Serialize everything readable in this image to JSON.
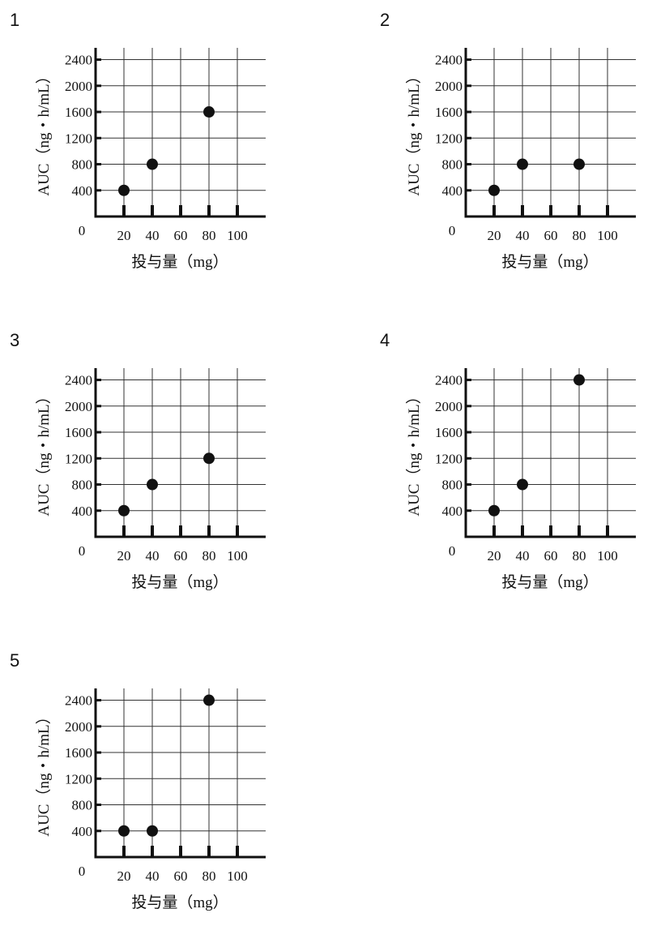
{
  "chart_data": [
    {
      "panel": "1",
      "type": "scatter",
      "xlabel": "投与量（mg）",
      "ylabel": "AUC（ng・h/mL）",
      "x": [
        20,
        40,
        80
      ],
      "y": [
        400,
        800,
        1600
      ],
      "x_ticks": [
        "20",
        "40",
        "60",
        "80",
        "100"
      ],
      "y_ticks": [
        "400",
        "800",
        "1200",
        "1600",
        "2000",
        "2400"
      ],
      "origin_label": "0",
      "xlim": [
        0,
        110
      ],
      "ylim": [
        0,
        2400
      ],
      "grid": true
    },
    {
      "panel": "2",
      "type": "scatter",
      "xlabel": "投与量（mg）",
      "ylabel": "AUC（ng・h/mL）",
      "x": [
        20,
        40,
        80
      ],
      "y": [
        400,
        800,
        800
      ],
      "x_ticks": [
        "20",
        "40",
        "60",
        "80",
        "100"
      ],
      "y_ticks": [
        "400",
        "800",
        "1200",
        "1600",
        "2000",
        "2400"
      ],
      "origin_label": "0",
      "xlim": [
        0,
        110
      ],
      "ylim": [
        0,
        2400
      ],
      "grid": true
    },
    {
      "panel": "3",
      "type": "scatter",
      "xlabel": "投与量（mg）",
      "ylabel": "AUC（ng・h/mL）",
      "x": [
        20,
        40,
        80
      ],
      "y": [
        400,
        800,
        1200
      ],
      "x_ticks": [
        "20",
        "40",
        "60",
        "80",
        "100"
      ],
      "y_ticks": [
        "400",
        "800",
        "1200",
        "1600",
        "2000",
        "2400"
      ],
      "origin_label": "0",
      "xlim": [
        0,
        110
      ],
      "ylim": [
        0,
        2400
      ],
      "grid": true
    },
    {
      "panel": "4",
      "type": "scatter",
      "xlabel": "投与量（mg）",
      "ylabel": "AUC（ng・h/mL）",
      "x": [
        20,
        40,
        80
      ],
      "y": [
        400,
        800,
        2400
      ],
      "x_ticks": [
        "20",
        "40",
        "60",
        "80",
        "100"
      ],
      "y_ticks": [
        "400",
        "800",
        "1200",
        "1600",
        "2000",
        "2400"
      ],
      "origin_label": "0",
      "xlim": [
        0,
        110
      ],
      "ylim": [
        0,
        2400
      ],
      "grid": true
    },
    {
      "panel": "5",
      "type": "scatter",
      "xlabel": "投与量（mg）",
      "ylabel": "AUC（ng・h/mL）",
      "x": [
        20,
        40,
        80
      ],
      "y": [
        400,
        400,
        2400
      ],
      "x_ticks": [
        "20",
        "40",
        "60",
        "80",
        "100"
      ],
      "y_ticks": [
        "400",
        "800",
        "1200",
        "1600",
        "2000",
        "2400"
      ],
      "origin_label": "0",
      "xlim": [
        0,
        110
      ],
      "ylim": [
        0,
        2400
      ],
      "grid": true
    }
  ],
  "colors": {
    "ink": "#111111",
    "grid": "#333333"
  }
}
